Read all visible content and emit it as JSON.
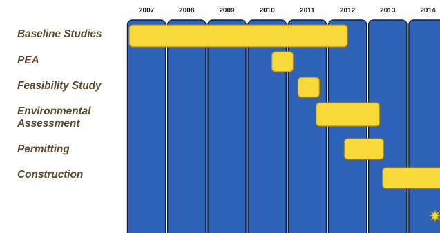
{
  "colors": {
    "column_fill": "#2f63b8",
    "column_stroke": "#0a1e48",
    "bar_fill": "#f7d93a",
    "bar_stroke": "#b38a00",
    "label_color": "#5e4b2f",
    "star_color": "#f7d93a"
  },
  "years": [
    "2007",
    "2008",
    "2009",
    "2010",
    "2011",
    "2012",
    "2013",
    "2014"
  ],
  "tasks": [
    {
      "label": "Baseline Studies",
      "start": 2007.0,
      "end": 2012.5
    },
    {
      "label": "PEA",
      "start": 2010.55,
      "end": 2011.15
    },
    {
      "label": "Feasibility Study",
      "start": 2011.2,
      "end": 2011.8
    },
    {
      "label": "Environmental Assessment",
      "start": 2011.65,
      "end": 2013.3
    },
    {
      "label": "Permitting",
      "start": 2012.35,
      "end": 2013.4
    },
    {
      "label": "Construction",
      "start": 2013.3,
      "end": 2014.9
    }
  ]
}
